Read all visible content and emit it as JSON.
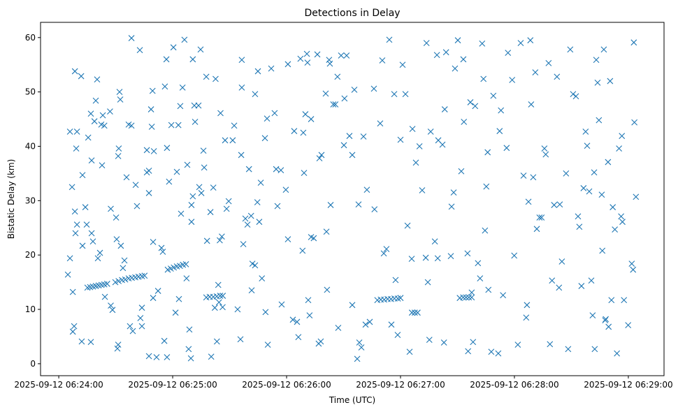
{
  "chart_data": {
    "type": "scatter",
    "title": "Detections in Delay",
    "xlabel": "Time (UTC)",
    "ylabel": "Bistatic Delay (km)",
    "x_units": "seconds after 2025-09-12 06:24:00",
    "xlim": [
      -9.6,
      318.8
    ],
    "ylim": [
      -2.2,
      62.8
    ],
    "grid": false,
    "marker": "x",
    "color": "#1f77b4",
    "x_ticks": [
      {
        "value": 0,
        "label": "2025-09-12 06:24:00"
      },
      {
        "value": 60,
        "label": "2025-09-12 06:25:00"
      },
      {
        "value": 120,
        "label": "2025-09-12 06:26:00"
      },
      {
        "value": 180,
        "label": "2025-09-12 06:27:00"
      },
      {
        "value": 240,
        "label": "2025-09-12 06:28:00"
      },
      {
        "value": 300,
        "label": "2025-09-12 06:29:00"
      }
    ],
    "y_ticks": [
      {
        "value": 0,
        "label": "0"
      },
      {
        "value": 10,
        "label": "10"
      },
      {
        "value": 20,
        "label": "20"
      },
      {
        "value": 30,
        "label": "30"
      },
      {
        "value": 40,
        "label": "40"
      },
      {
        "value": 50,
        "label": "50"
      },
      {
        "value": 60,
        "label": "60"
      }
    ],
    "points": [
      [
        4.8,
        16.4
      ],
      [
        5.9,
        19.4
      ],
      [
        5.9,
        42.7
      ],
      [
        7,
        32.5
      ],
      [
        7.4,
        13.2
      ],
      [
        7.4,
        5.9
      ],
      [
        8.1,
        6.9
      ],
      [
        8.5,
        53.8
      ],
      [
        9.6,
        42.7
      ],
      [
        9.2,
        39.6
      ],
      [
        8.5,
        28
      ],
      [
        8.8,
        24
      ],
      [
        9.6,
        25.6
      ],
      [
        11.8,
        52.9
      ],
      [
        12.1,
        4.1
      ],
      [
        12.5,
        34.7
      ],
      [
        12.5,
        21.7
      ],
      [
        14,
        28.8
      ],
      [
        14.7,
        25.6
      ],
      [
        15.5,
        41.6
      ],
      [
        16.9,
        46
      ],
      [
        16.9,
        4
      ],
      [
        17.3,
        37.4
      ],
      [
        17.3,
        24
      ],
      [
        18,
        22.5
      ],
      [
        18.8,
        44.6
      ],
      [
        19.5,
        48.4
      ],
      [
        20.2,
        52.3
      ],
      [
        20.6,
        19.4
      ],
      [
        21.7,
        20.4
      ],
      [
        22.4,
        44
      ],
      [
        22.8,
        36.5
      ],
      [
        23.2,
        45.7
      ],
      [
        24,
        43.8
      ],
      [
        24.3,
        12.3
      ],
      [
        27,
        46.4
      ],
      [
        27.4,
        28.5
      ],
      [
        27.4,
        10.7
      ],
      [
        28.3,
        9.9
      ],
      [
        30.2,
        26.9
      ],
      [
        30.5,
        22.9
      ],
      [
        30.9,
        2.8
      ],
      [
        31.3,
        3.5
      ],
      [
        31.3,
        38.2
      ],
      [
        31.6,
        39.6
      ],
      [
        32,
        50
      ],
      [
        32.4,
        48.6
      ],
      [
        32.7,
        21.7
      ],
      [
        33.8,
        17.6
      ],
      [
        34.6,
        19
      ],
      [
        35.7,
        34.3
      ],
      [
        36.8,
        44
      ],
      [
        37.5,
        6.9
      ],
      [
        38.3,
        59.9
      ],
      [
        38.3,
        43.8
      ],
      [
        39,
        6
      ],
      [
        40.5,
        32.9
      ],
      [
        41.2,
        29
      ],
      [
        42.7,
        57.7
      ],
      [
        43,
        8.4
      ],
      [
        43.8,
        10.3
      ],
      [
        43.8,
        6.9
      ],
      [
        46.4,
        39.3
      ],
      [
        46.4,
        35.2
      ],
      [
        47.5,
        35.5
      ],
      [
        47.5,
        31.4
      ],
      [
        47.5,
        1.4
      ],
      [
        48.6,
        46.8
      ],
      [
        49,
        43.6
      ],
      [
        49.4,
        50.2
      ],
      [
        49.7,
        12.1
      ],
      [
        49.7,
        22.4
      ],
      [
        50.1,
        39.1
      ],
      [
        51.5,
        1.2
      ],
      [
        52.3,
        13.4
      ],
      [
        54.1,
        21.3
      ],
      [
        54.8,
        20.6
      ],
      [
        55.6,
        4.2
      ],
      [
        55.9,
        51
      ],
      [
        56.7,
        56
      ],
      [
        57,
        39.7
      ],
      [
        57,
        1.2
      ],
      [
        58.1,
        33.5
      ],
      [
        59.3,
        43.9
      ],
      [
        60.4,
        58.2
      ],
      [
        61.5,
        9.4
      ],
      [
        62.2,
        35.3
      ],
      [
        63,
        43.9
      ],
      [
        63.3,
        11.9
      ],
      [
        64,
        47.4
      ],
      [
        64.4,
        27.6
      ],
      [
        65.2,
        50.8
      ],
      [
        66.2,
        59.6
      ],
      [
        67.3,
        15.7
      ],
      [
        67.7,
        36.6
      ],
      [
        68.4,
        2.7
      ],
      [
        68.8,
        6.3
      ],
      [
        69.6,
        1
      ],
      [
        69.9,
        29.2
      ],
      [
        69.9,
        26.1
      ],
      [
        70.6,
        30.8
      ],
      [
        70.6,
        56
      ],
      [
        71.4,
        47.5
      ],
      [
        71.8,
        44.5
      ],
      [
        73.6,
        47.5
      ],
      [
        74,
        32.5
      ],
      [
        74.7,
        57.8
      ],
      [
        75.1,
        31.4
      ],
      [
        76.2,
        39.2
      ],
      [
        76.6,
        36.1
      ],
      [
        77.7,
        52.8
      ],
      [
        78.1,
        22.6
      ],
      [
        79.9,
        27.9
      ],
      [
        80.3,
        1.3
      ],
      [
        81.4,
        32.4
      ],
      [
        82.2,
        10.3
      ],
      [
        82.6,
        52.4
      ],
      [
        83.3,
        4.1
      ],
      [
        84,
        14.5
      ],
      [
        84.4,
        11.3
      ],
      [
        84.8,
        22.7
      ],
      [
        85.2,
        46.1
      ],
      [
        85.9,
        23.4
      ],
      [
        86.3,
        10.4
      ],
      [
        87.6,
        41.1
      ],
      [
        88.4,
        28.5
      ],
      [
        89.5,
        29.9
      ],
      [
        91.6,
        41.1
      ],
      [
        92.4,
        43.8
      ],
      [
        94.2,
        10
      ],
      [
        95.7,
        4.5
      ],
      [
        96.1,
        38.4
      ],
      [
        96.4,
        55.9
      ],
      [
        96.4,
        50.8
      ],
      [
        97.2,
        22
      ],
      [
        98.3,
        26.7
      ],
      [
        99.4,
        25.6
      ],
      [
        100.2,
        35.8
      ],
      [
        101.3,
        27.2
      ],
      [
        101.6,
        13.5
      ],
      [
        102,
        18.4
      ],
      [
        103.4,
        49.6
      ],
      [
        103.4,
        18.1
      ],
      [
        104.6,
        29.7
      ],
      [
        104.9,
        53.8
      ],
      [
        105.6,
        26.1
      ],
      [
        106.4,
        33.3
      ],
      [
        107,
        15.7
      ],
      [
        108.6,
        41.5
      ],
      [
        108.9,
        9.5
      ],
      [
        109.7,
        45.1
      ],
      [
        110.1,
        3.5
      ],
      [
        111.9,
        54.3
      ],
      [
        113.7,
        46.1
      ],
      [
        114.5,
        35.8
      ],
      [
        115.2,
        29
      ],
      [
        117,
        35.6
      ],
      [
        117.4,
        10.9
      ],
      [
        119.6,
        32
      ],
      [
        120.7,
        55.1
      ],
      [
        120.7,
        22.9
      ],
      [
        123.3,
        8.1
      ],
      [
        124,
        42.8
      ],
      [
        125.5,
        7.7
      ],
      [
        126.2,
        4.9
      ],
      [
        127.3,
        56.1
      ],
      [
        128.4,
        20.8
      ],
      [
        128.8,
        42.5
      ],
      [
        129.2,
        35.1
      ],
      [
        129.9,
        45.9
      ],
      [
        130.7,
        57
      ],
      [
        131,
        55.4
      ],
      [
        131.4,
        11.7
      ],
      [
        132.1,
        8.9
      ],
      [
        132.9,
        45
      ],
      [
        132.9,
        23.3
      ],
      [
        134.3,
        23.1
      ],
      [
        136.2,
        56.9
      ],
      [
        136.9,
        3.7
      ],
      [
        138,
        4.1
      ],
      [
        137.3,
        37.8
      ],
      [
        138.4,
        38.4
      ],
      [
        140.6,
        49.7
      ],
      [
        141,
        24.3
      ],
      [
        141.3,
        13.6
      ],
      [
        142.4,
        55.9
      ],
      [
        142.8,
        55.2
      ],
      [
        143.2,
        29.2
      ],
      [
        144.6,
        47.7
      ],
      [
        145.7,
        47.7
      ],
      [
        146.8,
        52.8
      ],
      [
        147.2,
        6.6
      ],
      [
        148.7,
        56.7
      ],
      [
        150.2,
        40.2
      ],
      [
        150.5,
        48.8
      ],
      [
        151.6,
        56.7
      ],
      [
        153.1,
        41.9
      ],
      [
        154.6,
        38.4
      ],
      [
        154.6,
        10.8
      ],
      [
        155.7,
        50.4
      ],
      [
        157.2,
        0.9
      ],
      [
        157.9,
        29.3
      ],
      [
        158.3,
        3.9
      ],
      [
        159.4,
        3
      ],
      [
        160.5,
        41.8
      ],
      [
        161.6,
        7.2
      ],
      [
        162.3,
        32
      ],
      [
        163.8,
        7.7
      ],
      [
        166,
        50.6
      ],
      [
        166.3,
        28.4
      ],
      [
        169.3,
        44.2
      ],
      [
        170.4,
        55.8
      ],
      [
        171.2,
        20.3
      ],
      [
        172.6,
        21.1
      ],
      [
        174.1,
        59.6
      ],
      [
        175.2,
        7.2
      ],
      [
        176.7,
        49.6
      ],
      [
        177.4,
        15.4
      ],
      [
        178.5,
        5.3
      ],
      [
        180,
        41.2
      ],
      [
        181.1,
        55
      ],
      [
        182.6,
        49.6
      ],
      [
        183.7,
        25.4
      ],
      [
        184.8,
        2.2
      ],
      [
        185.9,
        19.3
      ],
      [
        186.3,
        43.2
      ],
      [
        188.1,
        37
      ],
      [
        190,
        40
      ],
      [
        191.4,
        31.9
      ],
      [
        193.3,
        19.5
      ],
      [
        193.7,
        59
      ],
      [
        194.4,
        15
      ],
      [
        195.2,
        4.4
      ],
      [
        195.9,
        42.7
      ],
      [
        198.1,
        22.5
      ],
      [
        199.2,
        56.8
      ],
      [
        199.6,
        19.4
      ],
      [
        199.9,
        41.1
      ],
      [
        202.1,
        40.3
      ],
      [
        202.9,
        3.9
      ],
      [
        203.3,
        46.8
      ],
      [
        204,
        57.3
      ],
      [
        206.5,
        19.8
      ],
      [
        206.9,
        28.9
      ],
      [
        208,
        31.5
      ],
      [
        208.7,
        54.3
      ],
      [
        210.2,
        59.5
      ],
      [
        211.2,
        12.1
      ],
      [
        212,
        35.4
      ],
      [
        213.1,
        56
      ],
      [
        213.4,
        44.5
      ],
      [
        215.3,
        20.3
      ],
      [
        215.6,
        2.3
      ],
      [
        216.8,
        48.1
      ],
      [
        217.5,
        13.1
      ],
      [
        218.2,
        4
      ],
      [
        219.3,
        47.4
      ],
      [
        220.8,
        18.5
      ],
      [
        221.9,
        15.7
      ],
      [
        223,
        58.9
      ],
      [
        223.7,
        52.4
      ],
      [
        224.5,
        24.5
      ],
      [
        225.2,
        32.6
      ],
      [
        225.9,
        38.9
      ],
      [
        226.3,
        13.6
      ],
      [
        227.8,
        2.2
      ],
      [
        228.9,
        49.3
      ],
      [
        231.5,
        1.9
      ],
      [
        232.2,
        42.8
      ],
      [
        232.9,
        46.6
      ],
      [
        234,
        12.6
      ],
      [
        235.9,
        39.7
      ],
      [
        236.6,
        57.2
      ],
      [
        238.8,
        52.2
      ],
      [
        239.9,
        19.9
      ],
      [
        241.8,
        3.5
      ],
      [
        243.3,
        59
      ],
      [
        244.8,
        34.6
      ],
      [
        246.2,
        8.5
      ],
      [
        246.6,
        10.8
      ],
      [
        247.4,
        29.8
      ],
      [
        248.4,
        59.5
      ],
      [
        248.8,
        47.7
      ],
      [
        249.9,
        34.3
      ],
      [
        251,
        53.6
      ],
      [
        251.8,
        24.8
      ],
      [
        253.2,
        26.9
      ],
      [
        254.3,
        26.9
      ],
      [
        255.8,
        39.6
      ],
      [
        256.5,
        38.5
      ],
      [
        258,
        55.3
      ],
      [
        258.7,
        3.6
      ],
      [
        259.8,
        15.3
      ],
      [
        260.9,
        29.2
      ],
      [
        262.4,
        52.8
      ],
      [
        263.5,
        14
      ],
      [
        263.9,
        29.3
      ],
      [
        265,
        18.8
      ],
      [
        267.2,
        35
      ],
      [
        268.3,
        2.7
      ],
      [
        269.4,
        57.8
      ],
      [
        270.9,
        49.6
      ],
      [
        272.4,
        49.2
      ],
      [
        273.5,
        27.1
      ],
      [
        274.2,
        25.2
      ],
      [
        275.3,
        14.3
      ],
      [
        276.4,
        32.3
      ],
      [
        277.5,
        42.7
      ],
      [
        278.3,
        40.1
      ],
      [
        279.4,
        31.7
      ],
      [
        280.5,
        15.3
      ],
      [
        281.2,
        8.9
      ],
      [
        282,
        35.2
      ],
      [
        282.3,
        2.7
      ],
      [
        283.1,
        55.9
      ],
      [
        283.8,
        51.7
      ],
      [
        284.5,
        44.8
      ],
      [
        286,
        31.1
      ],
      [
        286.3,
        20.8
      ],
      [
        287.1,
        57.8
      ],
      [
        287.8,
        8
      ],
      [
        288.1,
        8.2
      ],
      [
        289.3,
        37.1
      ],
      [
        289.6,
        6.8
      ],
      [
        290.4,
        52
      ],
      [
        291.1,
        11.7
      ],
      [
        291.8,
        28.8
      ],
      [
        292.9,
        24.7
      ],
      [
        294,
        1.9
      ],
      [
        295.1,
        39.6
      ],
      [
        296.2,
        27.1
      ],
      [
        296.6,
        41.9
      ],
      [
        296.9,
        26.1
      ],
      [
        297.7,
        11.7
      ],
      [
        299.9,
        7.1
      ],
      [
        301.8,
        18.4
      ],
      [
        302.5,
        17.3
      ],
      [
        302.9,
        59.1
      ],
      [
        303.2,
        44.4
      ],
      [
        304,
        30.7
      ],
      [
        15.1,
        14.0
      ],
      [
        16.5,
        14.1
      ],
      [
        18,
        14.2
      ],
      [
        19.5,
        14.3
      ],
      [
        21,
        14.4
      ],
      [
        22.5,
        14.5
      ],
      [
        24,
        14.6
      ],
      [
        25.5,
        14.7
      ],
      [
        29.8,
        15.0
      ],
      [
        31.5,
        15.2
      ],
      [
        33.3,
        15.4
      ],
      [
        35,
        15.5
      ],
      [
        36.8,
        15.7
      ],
      [
        38.5,
        15.8
      ],
      [
        40.3,
        15.9
      ],
      [
        42,
        16.0
      ],
      [
        43.8,
        16.1
      ],
      [
        45.2,
        16.2
      ],
      [
        57.4,
        17.3
      ],
      [
        59,
        17.5
      ],
      [
        60.6,
        17.7
      ],
      [
        62.2,
        17.9
      ],
      [
        63.8,
        18.0
      ],
      [
        65.4,
        18.2
      ],
      [
        67,
        18.3
      ],
      [
        77.7,
        12.2
      ],
      [
        79.5,
        12.3
      ],
      [
        81.4,
        12.3
      ],
      [
        83.2,
        12.4
      ],
      [
        85,
        12.5
      ],
      [
        86.4,
        12.5
      ],
      [
        167.8,
        11.7
      ],
      [
        169.6,
        11.8
      ],
      [
        171.4,
        11.8
      ],
      [
        173.2,
        11.9
      ],
      [
        175,
        11.9
      ],
      [
        176.8,
        12
      ],
      [
        178.6,
        12
      ],
      [
        180,
        12.1
      ],
      [
        186,
        9.4
      ],
      [
        187.5,
        9.4
      ],
      [
        189,
        9.4
      ],
      [
        213,
        12.2
      ],
      [
        214.5,
        12.2
      ],
      [
        216,
        12.2
      ],
      [
        217.5,
        12.2
      ]
    ]
  }
}
